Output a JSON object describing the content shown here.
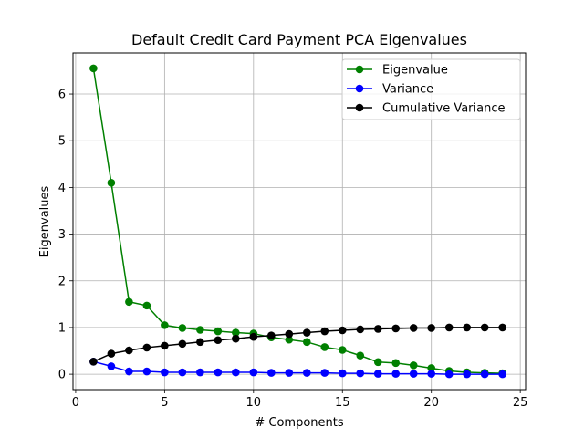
{
  "chart_data": {
    "type": "line",
    "title": "Default Credit Card Payment PCA Eigenvalues",
    "xlabel": "# Components",
    "ylabel": "Eigenvalues",
    "xlim": [
      -0.15,
      25.3
    ],
    "ylim": [
      -0.33,
      6.88
    ],
    "xticks": [
      0,
      5,
      10,
      15,
      20,
      25
    ],
    "yticks": [
      0,
      1,
      2,
      3,
      4,
      5,
      6
    ],
    "grid": true,
    "legend_position": "top-right",
    "x": [
      1,
      2,
      3,
      4,
      5,
      6,
      7,
      8,
      9,
      10,
      11,
      12,
      13,
      14,
      15,
      16,
      17,
      18,
      19,
      20,
      21,
      22,
      23,
      24
    ],
    "series": [
      {
        "name": "Eigenvalue",
        "color": "#008000",
        "values": [
          6.55,
          4.1,
          1.55,
          1.47,
          1.05,
          0.99,
          0.95,
          0.92,
          0.89,
          0.87,
          0.79,
          0.74,
          0.69,
          0.58,
          0.52,
          0.4,
          0.26,
          0.24,
          0.19,
          0.13,
          0.07,
          0.04,
          0.03,
          0.02
        ]
      },
      {
        "name": "Variance",
        "color": "#0000ff",
        "values": [
          0.27,
          0.17,
          0.06,
          0.06,
          0.04,
          0.04,
          0.04,
          0.04,
          0.04,
          0.04,
          0.03,
          0.03,
          0.03,
          0.03,
          0.02,
          0.02,
          0.01,
          0.01,
          0.01,
          0.01,
          0.0,
          0.0,
          0.0,
          0.0
        ]
      },
      {
        "name": "Cumulative Variance",
        "color": "#000000",
        "values": [
          0.27,
          0.44,
          0.51,
          0.57,
          0.61,
          0.65,
          0.69,
          0.73,
          0.76,
          0.8,
          0.83,
          0.86,
          0.89,
          0.92,
          0.94,
          0.96,
          0.97,
          0.98,
          0.99,
          0.99,
          1.0,
          1.0,
          1.0,
          1.0
        ]
      }
    ]
  }
}
